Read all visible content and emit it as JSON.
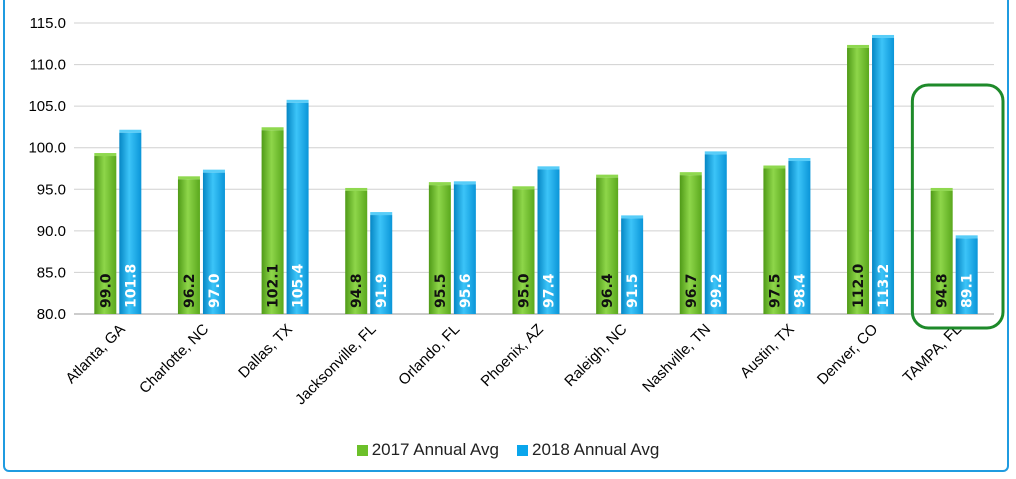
{
  "chart_data": {
    "type": "bar",
    "categories": [
      "Atlanta, GA",
      "Charlotte, NC",
      "Dallas, TX",
      "Jacksonville, FL",
      "Orlando, FL",
      "Phoenix, AZ",
      "Raleigh, NC",
      "Nashville, TN",
      "Austin, TX",
      "Denver, CO",
      "TAMPA, FL"
    ],
    "series": [
      {
        "name": "2017 Annual Avg",
        "color": "#6cc02a",
        "values": [
          99.0,
          96.2,
          102.1,
          94.8,
          95.5,
          95.0,
          96.4,
          96.7,
          97.5,
          112.0,
          94.8
        ]
      },
      {
        "name": "2018 Annual Avg",
        "color": "#0aa6ec",
        "values": [
          101.8,
          97.0,
          105.4,
          91.9,
          95.6,
          97.4,
          91.5,
          99.2,
          98.4,
          113.2,
          89.1
        ]
      }
    ],
    "data_labels": {
      "2017": [
        "99.0",
        "96.2",
        "102.1",
        "94.8",
        "95.5",
        "95.0",
        "96.4",
        "96.7",
        "97.5",
        "112.0",
        "94.8"
      ],
      "2018": [
        "101.8",
        "97.0",
        "105.4",
        "91.9",
        "95.6",
        "97.4",
        "91.5",
        "99.2",
        "98.4",
        "113.2",
        "89.1"
      ]
    },
    "ylim": [
      80,
      115
    ],
    "yticks": [
      "80.0",
      "85.0",
      "90.0",
      "95.0",
      "100.0",
      "105.0",
      "110.0",
      "115.0"
    ],
    "grid": true,
    "legend_position": "bottom",
    "highlight_category": "TAMPA, FL",
    "highlight_color": "#1e8a2a"
  },
  "legend": {
    "items": [
      {
        "label": "2017 Annual Avg",
        "color": "#6cc02a"
      },
      {
        "label": "2018 Annual Avg",
        "color": "#0aa6ec"
      }
    ]
  }
}
